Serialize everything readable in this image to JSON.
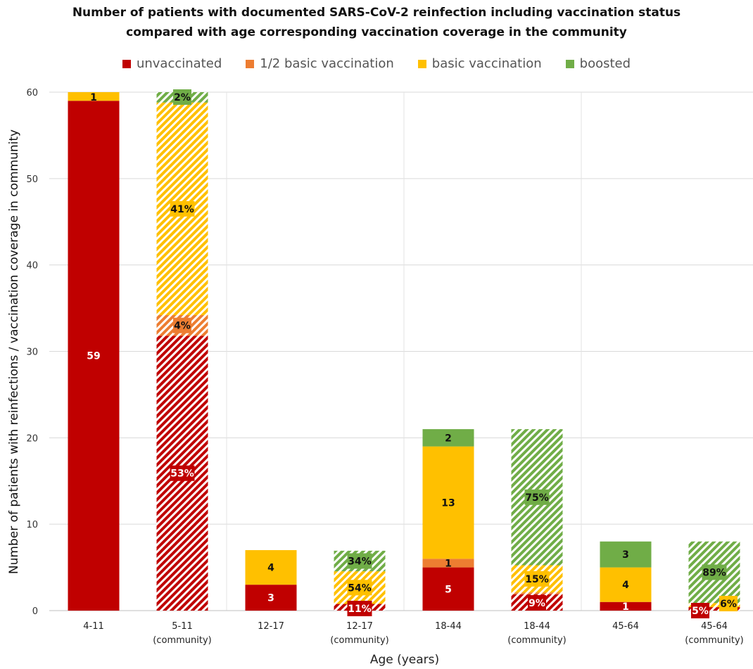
{
  "chart_data": {
    "type": "bar",
    "stacked": true,
    "title_line1": "Number of patients with documented SARS-CoV-2 reinfection including vaccination status",
    "title_line2": "compared with age corresponding vaccination coverage in the community",
    "ylabel": "Number of patients with reinfections / vaccination coverage in community",
    "xlabel": "Age (years)",
    "ylim": [
      0,
      60
    ],
    "yticks": [
      0,
      10,
      20,
      30,
      40,
      50,
      60
    ],
    "grid": true,
    "legend_position": "top",
    "series": [
      {
        "name": "unvaccinated",
        "color": "#c00000"
      },
      {
        "name": "1/2 basic vaccination",
        "color": "#ed7d31"
      },
      {
        "name": "basic vaccination",
        "color": "#ffc000"
      },
      {
        "name": "boosted",
        "color": "#70ad47"
      }
    ],
    "categories": [
      {
        "line1": "4-11",
        "line2": "",
        "hatched": false,
        "total": 60,
        "segments": [
          {
            "series": 0,
            "value": 59,
            "label": "59"
          },
          {
            "series": 2,
            "value": 1,
            "label": "1"
          }
        ]
      },
      {
        "line1": "5-11",
        "line2": "(community)",
        "hatched": true,
        "total": 60,
        "segments": [
          {
            "series": 0,
            "value": 31.8,
            "label": "53%"
          },
          {
            "series": 1,
            "value": 2.4,
            "label": "4%"
          },
          {
            "series": 2,
            "value": 24.6,
            "label": "41%"
          },
          {
            "series": 3,
            "value": 1.2,
            "label": "2%"
          }
        ]
      },
      {
        "line1": "12-17",
        "line2": "",
        "hatched": false,
        "total": 7,
        "segments": [
          {
            "series": 0,
            "value": 3,
            "label": "3"
          },
          {
            "series": 2,
            "value": 4,
            "label": "4"
          }
        ]
      },
      {
        "line1": "12-17",
        "line2": "(community)",
        "hatched": true,
        "total": 7,
        "segments": [
          {
            "series": 0,
            "value": 0.77,
            "label": "11%"
          },
          {
            "series": 2,
            "value": 3.78,
            "label": "54%"
          },
          {
            "series": 3,
            "value": 2.38,
            "label": "34%"
          }
        ]
      },
      {
        "line1": "18-44",
        "line2": "",
        "hatched": false,
        "total": 21,
        "segments": [
          {
            "series": 0,
            "value": 5,
            "label": "5"
          },
          {
            "series": 1,
            "value": 1,
            "label": "1"
          },
          {
            "series": 2,
            "value": 13,
            "label": "13"
          },
          {
            "series": 3,
            "value": 2,
            "label": "2"
          }
        ]
      },
      {
        "line1": "18-44",
        "line2": "(community)",
        "hatched": true,
        "total": 21,
        "segments": [
          {
            "series": 0,
            "value": 1.89,
            "label": "9%"
          },
          {
            "series": 1,
            "value": 0.21,
            "label": ""
          },
          {
            "series": 2,
            "value": 3.15,
            "label": "15%"
          },
          {
            "series": 3,
            "value": 15.75,
            "label": "75%"
          }
        ]
      },
      {
        "line1": "45-64",
        "line2": "",
        "hatched": false,
        "total": 8,
        "segments": [
          {
            "series": 0,
            "value": 1,
            "label": "1"
          },
          {
            "series": 2,
            "value": 4,
            "label": "4"
          },
          {
            "series": 3,
            "value": 3,
            "label": "3"
          }
        ]
      },
      {
        "line1": "45-64",
        "line2": "(community)",
        "hatched": true,
        "total": 8,
        "segments": [
          {
            "series": 0,
            "value": 0.4,
            "label": "5%"
          },
          {
            "series": 2,
            "value": 0.48,
            "label": "6%"
          },
          {
            "series": 3,
            "value": 7.12,
            "label": "89%"
          }
        ]
      }
    ]
  }
}
